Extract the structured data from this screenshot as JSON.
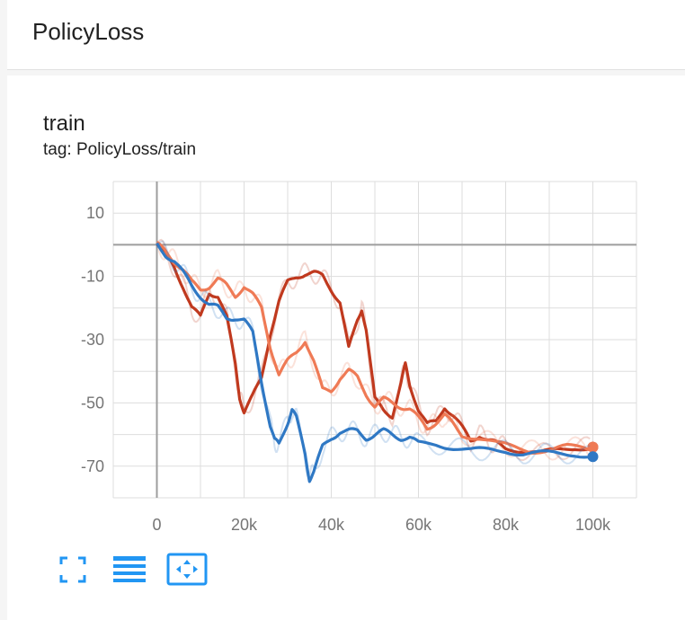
{
  "header": {
    "title": "PolicyLoss"
  },
  "card": {
    "title": "train",
    "tag": "tag: PolicyLoss/train"
  },
  "icons": [
    "fit-domain-icon",
    "toggle-log-scale-icon",
    "expand-chart-icon"
  ],
  "colors": {
    "series_dark_red": "#c0391e",
    "series_orange": "#ef7a55",
    "series_blue": "#2f78c4",
    "axis": "#9e9e9e",
    "grid": "#dddddd",
    "icon": "#2196f3"
  },
  "chart_data": {
    "type": "line",
    "x_tick_labels": [
      "0",
      "20k",
      "40k",
      "60k",
      "80k",
      "100k"
    ],
    "y_tick_labels": [
      "10",
      "-10",
      "-30",
      "-50",
      "-70"
    ],
    "x_ticks": [
      0,
      20000,
      40000,
      60000,
      80000,
      100000
    ],
    "y_ticks": [
      10,
      -10,
      -30,
      -50,
      -70
    ],
    "xlim": [
      -10000,
      110000
    ],
    "ylim": [
      -80,
      20
    ],
    "grid": true,
    "series": [
      {
        "color": "#c0391e",
        "x": [
          0,
          2000,
          4000,
          6000,
          8000,
          10000,
          12000,
          14000,
          16000,
          18000,
          19000,
          20000,
          22000,
          24000,
          26000,
          28000,
          30000,
          32000,
          34000,
          36000,
          38000,
          40000,
          42000,
          44000,
          46000,
          47000,
          48000,
          50000,
          52000,
          54000,
          56000,
          57000,
          58000,
          60000,
          62000,
          64000,
          66000,
          68000,
          70000,
          72000,
          74000,
          76000,
          78000,
          80000,
          84000,
          88000,
          92000,
          96000,
          100000
        ],
        "y": [
          0,
          -3,
          -7,
          -13,
          -20,
          -23,
          -15,
          -16,
          -23,
          -38,
          -48,
          -53,
          -48,
          -42,
          -28,
          -18,
          -12,
          -10,
          -9,
          -9,
          -10,
          -14,
          -18,
          -33,
          -24,
          -20,
          -27,
          -49,
          -52,
          -54,
          -44,
          -38,
          -44,
          -52,
          -57,
          -56,
          -51,
          -54,
          -58,
          -62,
          -60,
          -62,
          -63,
          -64,
          -65,
          -66,
          -65,
          -64,
          -64
        ]
      },
      {
        "color": "#ef7a55",
        "x": [
          0,
          2000,
          4000,
          6000,
          8000,
          10000,
          12000,
          14000,
          16000,
          18000,
          20000,
          22000,
          24000,
          26000,
          28000,
          30000,
          32000,
          34000,
          36000,
          38000,
          40000,
          42000,
          44000,
          46000,
          48000,
          50000,
          52000,
          54000,
          56000,
          58000,
          60000,
          62000,
          64000,
          66000,
          68000,
          70000,
          74000,
          78000,
          82000,
          86000,
          90000,
          94000,
          98000,
          100000
        ],
        "y": [
          0,
          -2,
          -5,
          -8,
          -12,
          -14,
          -13,
          -11,
          -13,
          -16,
          -13,
          -16,
          -20,
          -32,
          -41,
          -37,
          -34,
          -30,
          -37,
          -46,
          -46,
          -42,
          -40,
          -42,
          -47,
          -51,
          -49,
          -50,
          -51,
          -52,
          -55,
          -58,
          -56,
          -54,
          -57,
          -60,
          -61,
          -63,
          -64,
          -65,
          -65,
          -64,
          -64,
          -64
        ]
      },
      {
        "color": "#2f78c4",
        "x": [
          0,
          2000,
          4000,
          6000,
          8000,
          10000,
          12000,
          14000,
          16000,
          18000,
          20000,
          22000,
          24000,
          26000,
          27000,
          28000,
          30000,
          31000,
          32000,
          34000,
          35000,
          36000,
          38000,
          40000,
          42000,
          44000,
          46000,
          48000,
          50000,
          52000,
          54000,
          56000,
          58000,
          60000,
          64000,
          68000,
          72000,
          76000,
          80000,
          84000,
          88000,
          92000,
          96000,
          100000
        ],
        "y": [
          0,
          -3,
          -5,
          -9,
          -13,
          -16,
          -19,
          -20,
          -23,
          -23,
          -24,
          -28,
          -43,
          -57,
          -62,
          -63,
          -56,
          -52,
          -55,
          -66,
          -74,
          -72,
          -64,
          -61,
          -59,
          -59,
          -59,
          -61,
          -60,
          -59,
          -60,
          -61,
          -61,
          -63,
          -63,
          -64,
          -65,
          -65,
          -65,
          -66,
          -66,
          -66,
          -66,
          -67
        ]
      }
    ]
  }
}
